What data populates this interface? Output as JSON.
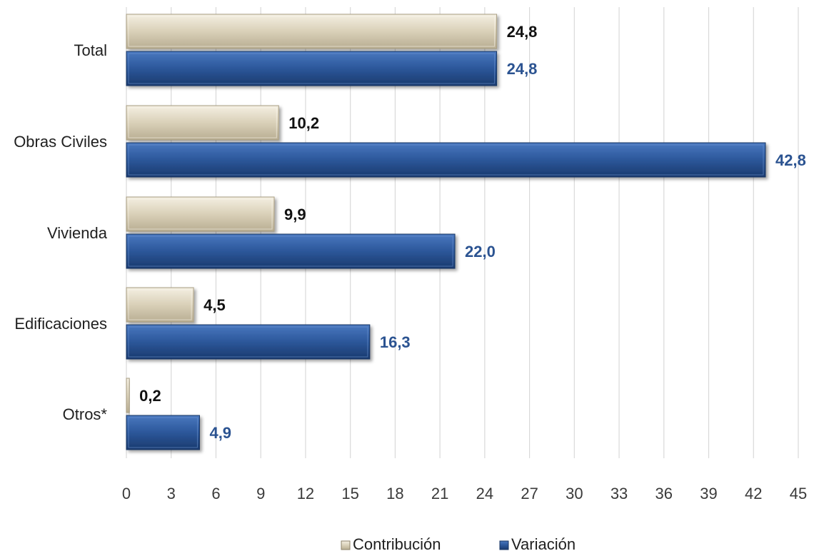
{
  "chart_data": {
    "type": "bar",
    "orientation": "horizontal",
    "categories": [
      "Total",
      "Obras Civiles",
      "Vivienda",
      "Edificaciones",
      "Otros*"
    ],
    "series": [
      {
        "name": "Contribución",
        "values": [
          24.8,
          10.2,
          9.9,
          4.5,
          0.2
        ],
        "labels": [
          "24,8",
          "10,2",
          "9,9",
          "4,5",
          "0,2"
        ],
        "color": "#e0d8c2"
      },
      {
        "name": "Variación",
        "values": [
          24.8,
          42.8,
          22.0,
          16.3,
          4.9
        ],
        "labels": [
          "24,8",
          "42,8",
          "22,0",
          "16,3",
          "4,9"
        ],
        "color": "#2e5a9e"
      }
    ],
    "xlim": [
      0,
      45
    ],
    "xticks": [
      0,
      3,
      6,
      9,
      12,
      15,
      18,
      21,
      24,
      27,
      30,
      33,
      36,
      39,
      42,
      45
    ],
    "grid": true,
    "legend_position": "bottom"
  },
  "colors": {
    "contribution_label": "#111111",
    "variation_label": "#2b5391",
    "gridline": "#d9d9d9"
  }
}
